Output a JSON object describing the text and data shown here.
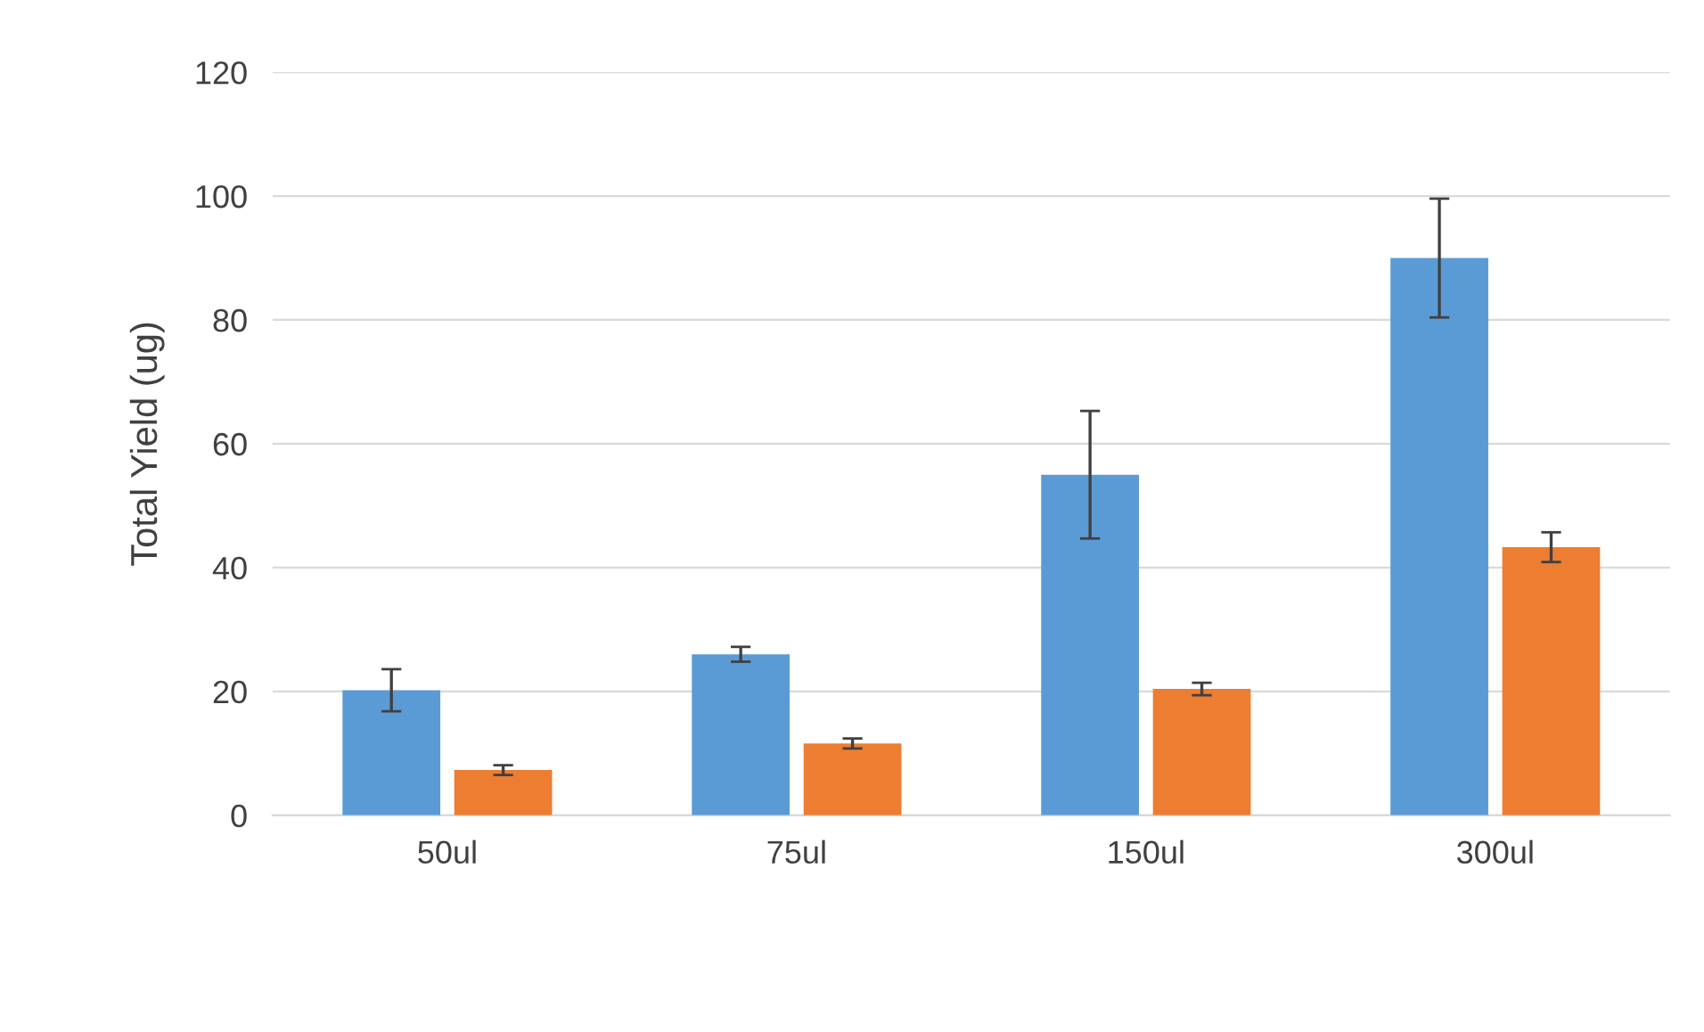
{
  "chart_data": {
    "type": "bar",
    "ylabel": "Total Yield (ug)",
    "categories": [
      "50ul",
      "75ul",
      "150ul",
      "300ul"
    ],
    "series": [
      {
        "color": "#5b9bd5",
        "values": [
          20.2,
          26,
          55,
          90
        ],
        "errors": [
          3.4,
          1.2,
          10.3,
          9.6
        ]
      },
      {
        "color": "#ed7d31",
        "values": [
          7.3,
          11.6,
          20.4,
          43.3
        ],
        "errors": [
          0.8,
          0.8,
          1,
          2.4
        ]
      }
    ],
    "ylim": [
      0,
      120
    ],
    "yticks": [
      0,
      20,
      40,
      60,
      80,
      100,
      120
    ],
    "grid": "y"
  }
}
